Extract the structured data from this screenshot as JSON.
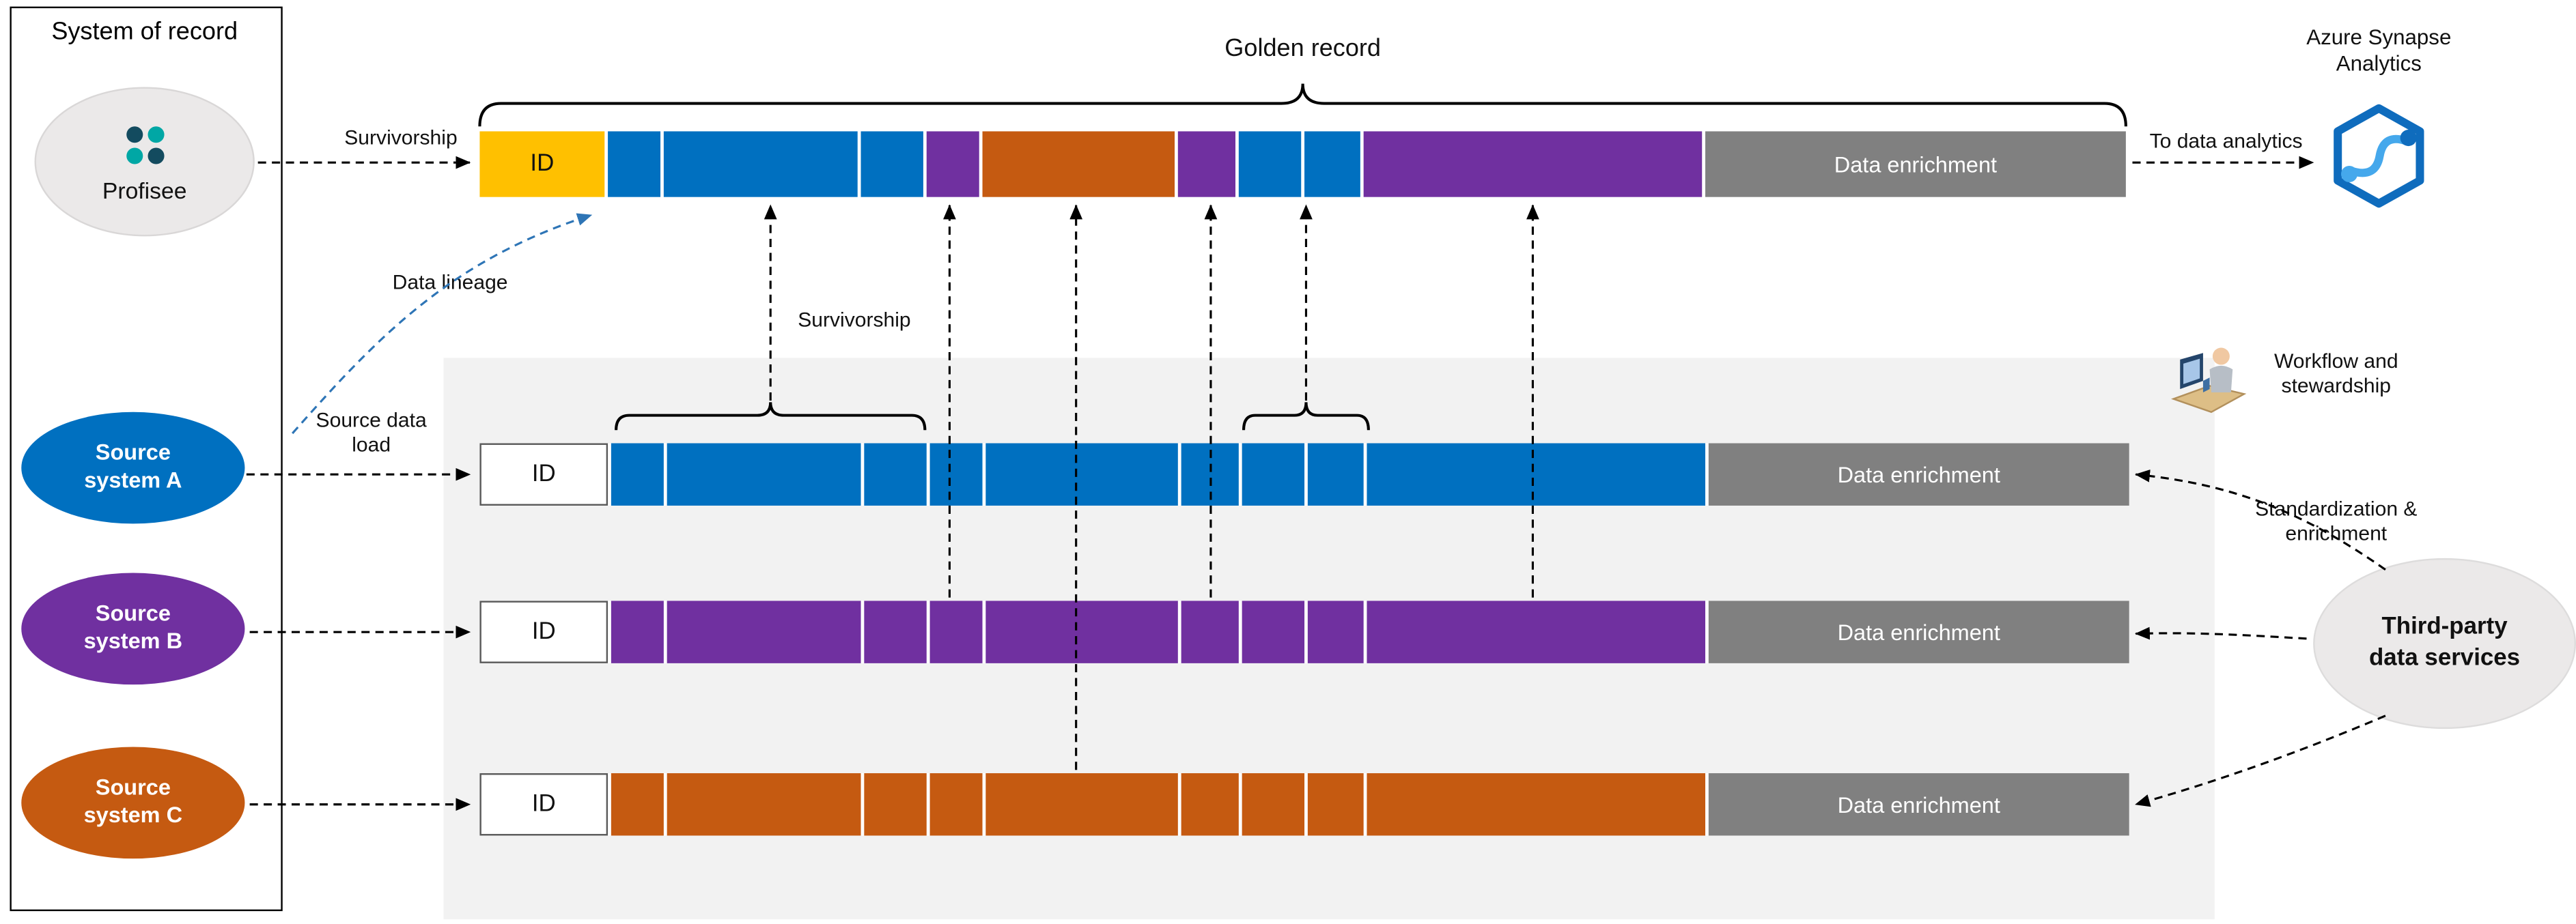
{
  "colors": {
    "blue": "#0070C0",
    "purple": "#7030A0",
    "orange": "#C55A11",
    "yellow": "#FFC000",
    "gray": "#808080",
    "panel": "#F2F2F2",
    "ellipse_gray": "#EBE9E9",
    "lineage_blue": "#2E75B6"
  },
  "system_of_record": {
    "title": "System of record"
  },
  "nodes": {
    "profisee": {
      "label": "Profisee"
    },
    "source_a": {
      "line1": "Source",
      "line2": "system A"
    },
    "source_b": {
      "line1": "Source",
      "line2": "system B"
    },
    "source_c": {
      "line1": "Source",
      "line2": "system C"
    },
    "third_party": {
      "line1": "Third-party",
      "line2": "data services"
    }
  },
  "golden_record": {
    "title": "Golden record",
    "id_label": "ID",
    "enrichment_label": "Data enrichment"
  },
  "rows": {
    "a": {
      "id_label": "ID",
      "enrichment_label": "Data enrichment"
    },
    "b": {
      "id_label": "ID",
      "enrichment_label": "Data enrichment"
    },
    "c": {
      "id_label": "ID",
      "enrichment_label": "Data enrichment"
    }
  },
  "labels": {
    "survivorship_top": "Survivorship",
    "survivorship_mid": "Survivorship",
    "data_lineage": "Data lineage",
    "source_data_load_1": "Source data",
    "source_data_load_2": "load",
    "to_data_analytics": "To data analytics",
    "azure_synapse_1": "Azure Synapse",
    "azure_synapse_2": "Analytics",
    "workflow_1": "Workflow and",
    "workflow_2": "stewardship",
    "standardization_1": "Standardization &",
    "standardization_2": "enrichment"
  },
  "bars": {
    "segment_widths": [
      32,
      118,
      38,
      32,
      117,
      35,
      38,
      34,
      206
    ],
    "golden": {
      "segment_colors": [
        "blue",
        "blue",
        "blue",
        "purple",
        "orange",
        "purple",
        "blue",
        "blue",
        "purple"
      ]
    },
    "row_a": {
      "segment_colors": [
        "blue",
        "blue",
        "blue",
        "blue",
        "blue",
        "blue",
        "blue",
        "blue",
        "blue"
      ]
    },
    "row_b": {
      "segment_colors": [
        "purple",
        "purple",
        "purple",
        "purple",
        "purple",
        "purple",
        "purple",
        "purple",
        "purple"
      ]
    },
    "row_c": {
      "segment_colors": [
        "orange",
        "orange",
        "orange",
        "orange",
        "orange",
        "orange",
        "orange",
        "orange",
        "orange"
      ]
    }
  }
}
